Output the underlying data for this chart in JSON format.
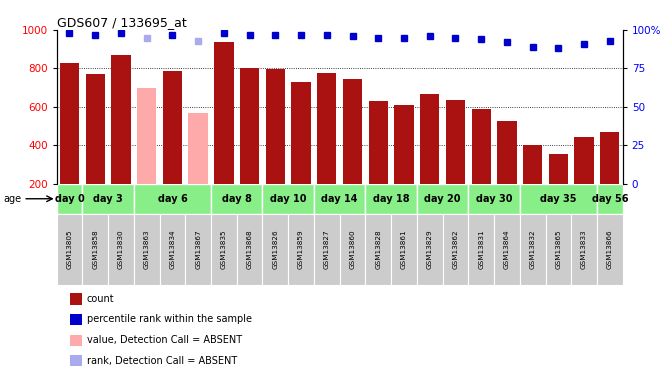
{
  "title": "GDS607 / 133695_at",
  "samples": [
    "GSM13805",
    "GSM13858",
    "GSM13830",
    "GSM13863",
    "GSM13834",
    "GSM13867",
    "GSM13835",
    "GSM13868",
    "GSM13826",
    "GSM13859",
    "GSM13827",
    "GSM13860",
    "GSM13828",
    "GSM13861",
    "GSM13829",
    "GSM13862",
    "GSM13831",
    "GSM13864",
    "GSM13832",
    "GSM13865",
    "GSM13833",
    "GSM13866"
  ],
  "counts": [
    830,
    770,
    870,
    700,
    785,
    570,
    935,
    800,
    795,
    730,
    775,
    745,
    630,
    610,
    665,
    635,
    590,
    525,
    400,
    355,
    445,
    470
  ],
  "absent": [
    false,
    false,
    false,
    true,
    false,
    true,
    false,
    false,
    false,
    false,
    false,
    false,
    false,
    false,
    false,
    false,
    false,
    false,
    false,
    false,
    false,
    false
  ],
  "percentile_ranks": [
    98,
    97,
    98,
    95,
    97,
    93,
    98,
    97,
    97,
    97,
    97,
    96,
    95,
    95,
    96,
    95,
    94,
    92,
    89,
    88,
    91,
    93
  ],
  "absent_rank": [
    false,
    false,
    false,
    true,
    false,
    true,
    false,
    false,
    false,
    false,
    false,
    false,
    false,
    false,
    false,
    false,
    false,
    false,
    false,
    false,
    false,
    false
  ],
  "day_groups": [
    {
      "label": "day 0",
      "samples": [
        "GSM13805"
      ]
    },
    {
      "label": "day 3",
      "samples": [
        "GSM13858",
        "GSM13830"
      ]
    },
    {
      "label": "day 6",
      "samples": [
        "GSM13863",
        "GSM13834",
        "GSM13867"
      ]
    },
    {
      "label": "day 8",
      "samples": [
        "GSM13835",
        "GSM13868"
      ]
    },
    {
      "label": "day 10",
      "samples": [
        "GSM13826",
        "GSM13859"
      ]
    },
    {
      "label": "day 14",
      "samples": [
        "GSM13827",
        "GSM13860"
      ]
    },
    {
      "label": "day 18",
      "samples": [
        "GSM13828",
        "GSM13861"
      ]
    },
    {
      "label": "day 20",
      "samples": [
        "GSM13829",
        "GSM13862"
      ]
    },
    {
      "label": "day 30",
      "samples": [
        "GSM13831",
        "GSM13864"
      ]
    },
    {
      "label": "day 35",
      "samples": [
        "GSM13832",
        "GSM13865",
        "GSM13833"
      ]
    },
    {
      "label": "day 56",
      "samples": [
        "GSM13866"
      ]
    }
  ],
  "ylim_left": [
    200,
    1000
  ],
  "ylim_right": [
    0,
    100
  ],
  "yticks_left": [
    200,
    400,
    600,
    800,
    1000
  ],
  "yticks_right": [
    0,
    25,
    50,
    75,
    100
  ],
  "bar_color_normal": "#aa1111",
  "bar_color_absent": "#ffaaaa",
  "dot_color_normal": "#0000cc",
  "dot_color_absent": "#aaaaee",
  "bg_color_samples": "#cccccc",
  "bg_color_days": "#88ee88",
  "legend_items": [
    {
      "label": "count",
      "color": "#aa1111"
    },
    {
      "label": "percentile rank within the sample",
      "color": "#0000cc"
    },
    {
      "label": "value, Detection Call = ABSENT",
      "color": "#ffaaaa"
    },
    {
      "label": "rank, Detection Call = ABSENT",
      "color": "#aaaaee"
    }
  ]
}
